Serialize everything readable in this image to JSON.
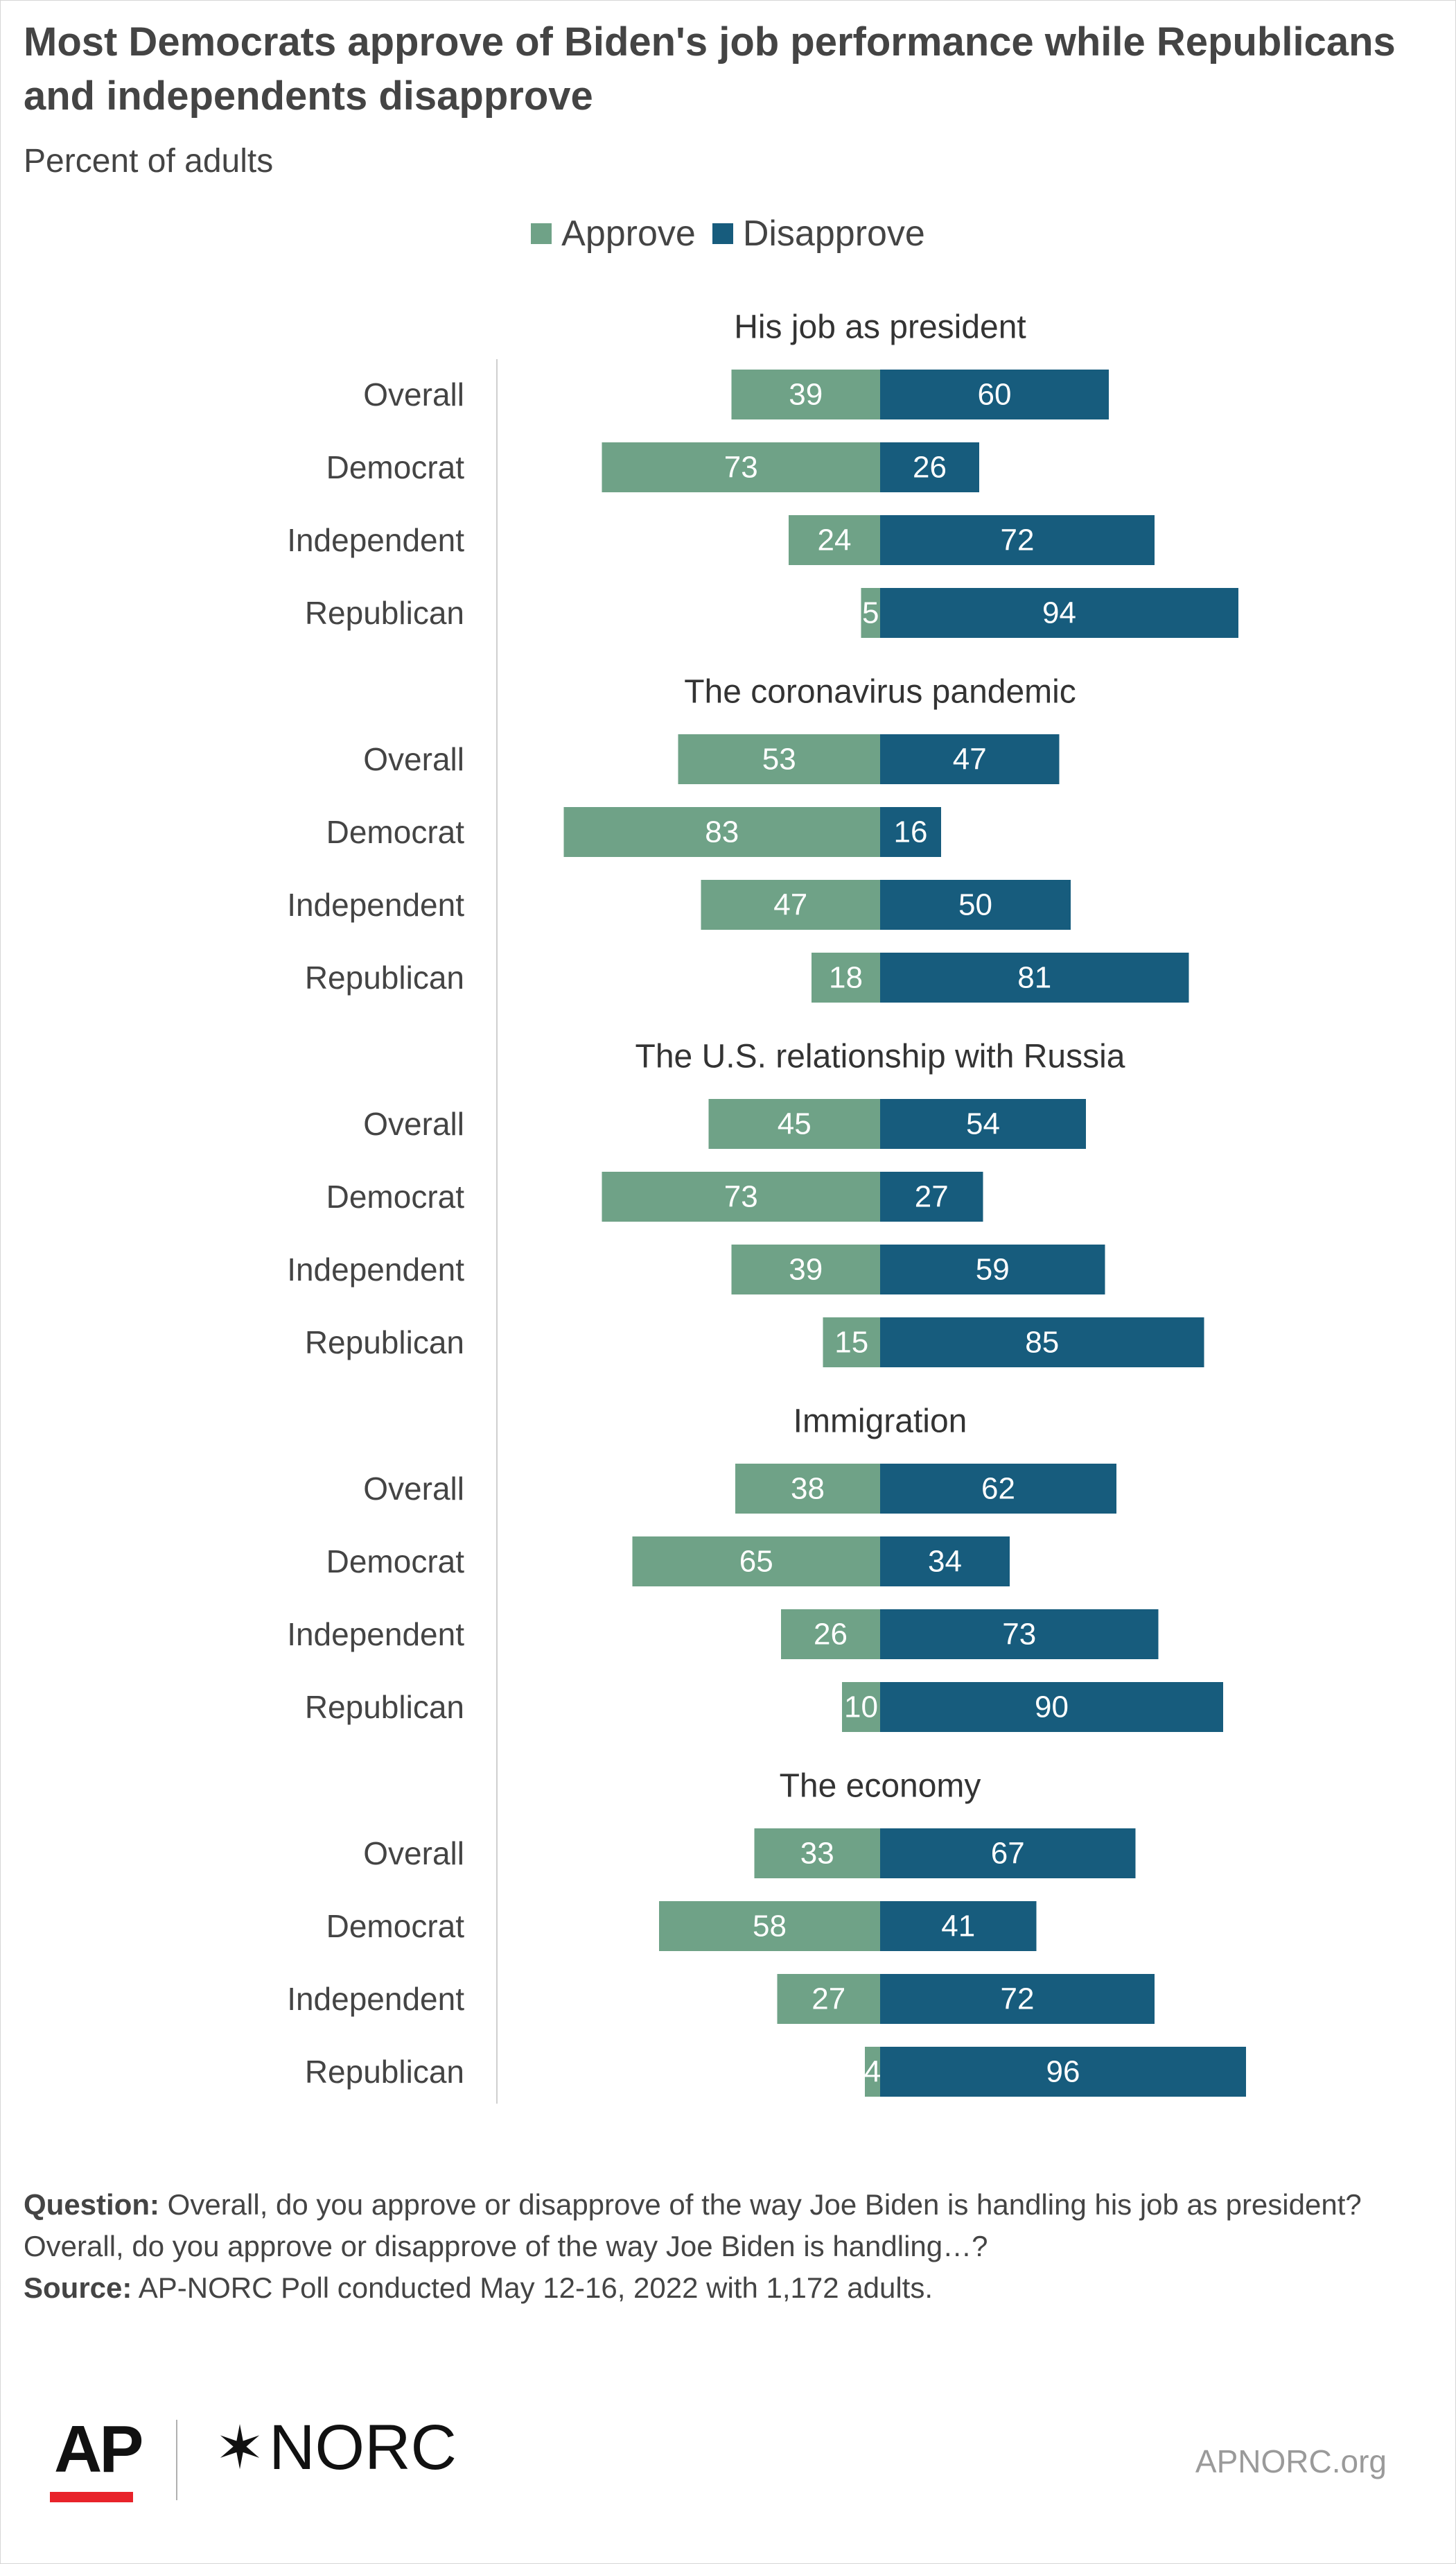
{
  "title": "Most Democrats approve of Biden's job performance while Republicans and independents disapprove",
  "subtitle": "Percent of adults",
  "legend": {
    "approve": "Approve",
    "disapprove": "Disapprove"
  },
  "colors": {
    "approve": "#6fa287",
    "disapprove": "#175c7d"
  },
  "chart_data": {
    "type": "bar",
    "orientation": "horizontal-diverging",
    "series": [
      {
        "name": "Approve",
        "color": "#6fa287"
      },
      {
        "name": "Disapprove",
        "color": "#175c7d"
      }
    ],
    "groups": [
      {
        "title": "His job as president",
        "rows": [
          {
            "label": "Overall",
            "approve": 39,
            "disapprove": 60
          },
          {
            "label": "Democrat",
            "approve": 73,
            "disapprove": 26
          },
          {
            "label": "Independent",
            "approve": 24,
            "disapprove": 72
          },
          {
            "label": "Republican",
            "approve": 5,
            "disapprove": 94
          }
        ]
      },
      {
        "title": "The coronavirus pandemic",
        "rows": [
          {
            "label": "Overall",
            "approve": 53,
            "disapprove": 47
          },
          {
            "label": "Democrat",
            "approve": 83,
            "disapprove": 16
          },
          {
            "label": "Independent",
            "approve": 47,
            "disapprove": 50
          },
          {
            "label": "Republican",
            "approve": 18,
            "disapprove": 81
          }
        ]
      },
      {
        "title": "The U.S. relationship with Russia",
        "rows": [
          {
            "label": "Overall",
            "approve": 45,
            "disapprove": 54
          },
          {
            "label": "Democrat",
            "approve": 73,
            "disapprove": 27
          },
          {
            "label": "Independent",
            "approve": 39,
            "disapprove": 59
          },
          {
            "label": "Republican",
            "approve": 15,
            "disapprove": 85
          }
        ]
      },
      {
        "title": "Immigration",
        "rows": [
          {
            "label": "Overall",
            "approve": 38,
            "disapprove": 62
          },
          {
            "label": "Democrat",
            "approve": 65,
            "disapprove": 34
          },
          {
            "label": "Independent",
            "approve": 26,
            "disapprove": 73
          },
          {
            "label": "Republican",
            "approve": 10,
            "disapprove": 90
          }
        ]
      },
      {
        "title": "The economy",
        "rows": [
          {
            "label": "Overall",
            "approve": 33,
            "disapprove": 67
          },
          {
            "label": "Democrat",
            "approve": 58,
            "disapprove": 41
          },
          {
            "label": "Independent",
            "approve": 27,
            "disapprove": 72
          },
          {
            "label": "Republican",
            "approve": 4,
            "disapprove": 96
          }
        ]
      }
    ]
  },
  "footnote": {
    "question_label": "Question:",
    "question_text": "Overall, do you approve or disapprove of the way Joe Biden is handling his job as president?  Overall, do you approve or disapprove of the way Joe Biden is handling…?",
    "source_label": "Source:",
    "source_text": "AP-NORC Poll conducted May 12-16, 2022 with 1,172 adults."
  },
  "footer": {
    "ap_logo": "AP",
    "norc_logo": "NORC",
    "url": "APNORC.org"
  }
}
